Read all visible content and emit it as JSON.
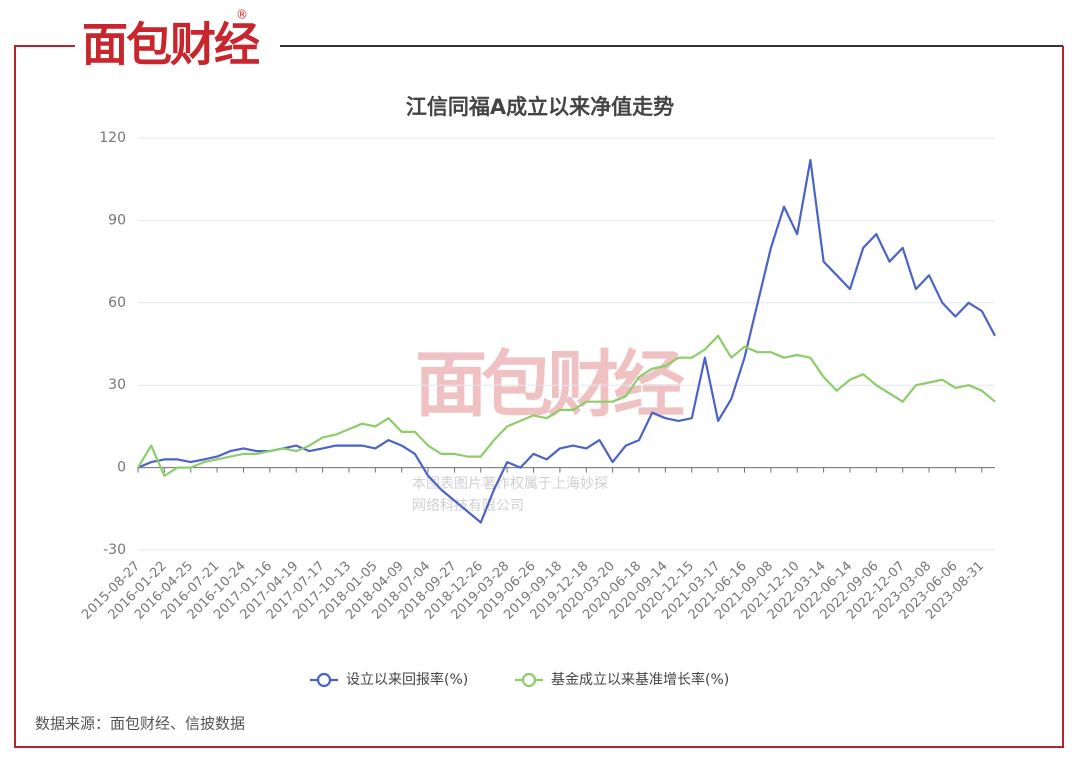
{
  "brand": {
    "name": "面包财经",
    "mark": "®"
  },
  "watermark": {
    "logo": "面包财经",
    "line1": "本图表图片著作权属于上海妙探",
    "line2": "网络科技有限公司"
  },
  "source": "数据来源：面包财经、信披数据",
  "chart_data": {
    "type": "line",
    "title": "江信同福A成立以来净值走势",
    "categories": [
      "2015-08-27",
      null,
      "2016-01-22",
      null,
      "2016-04-25",
      null,
      "2016-07-21",
      null,
      "2016-10-24",
      null,
      "2017-01-16",
      null,
      "2017-04-19",
      null,
      "2017-07-17",
      null,
      "2017-10-13",
      null,
      "2018-01-05",
      null,
      "2018-04-09",
      null,
      "2018-07-04",
      null,
      "2018-09-27",
      null,
      "2018-12-26",
      null,
      "2019-03-28",
      null,
      "2019-06-26",
      null,
      "2019-09-18",
      null,
      "2019-12-18",
      null,
      "2020-03-20",
      null,
      "2020-06-18",
      null,
      "2020-09-14",
      null,
      "2020-12-15",
      null,
      "2021-03-17",
      null,
      "2021-06-16",
      null,
      "2021-09-08",
      null,
      "2021-12-10",
      null,
      "2022-03-14",
      null,
      "2022-06-14",
      null,
      "2022-09-06",
      null,
      "2022-12-07",
      null,
      "2023-03-08",
      null,
      "2023-06-06",
      null,
      "2023-08-31",
      null
    ],
    "series": [
      {
        "name": "设立以来回报率(%)",
        "color": "#4a63c6",
        "values": [
          0,
          2,
          3,
          3,
          2,
          3,
          4,
          6,
          7,
          6,
          6,
          7,
          8,
          6,
          7,
          8,
          8,
          8,
          7,
          10,
          8,
          5,
          -3,
          -8,
          -12,
          -16,
          -20,
          -8,
          2,
          0,
          5,
          3,
          7,
          8,
          7,
          10,
          2,
          8,
          10,
          20,
          18,
          17,
          18,
          40,
          17,
          25,
          40,
          60,
          80,
          95,
          85,
          112,
          75,
          70,
          65,
          80,
          85,
          75,
          80,
          65,
          70,
          60,
          55,
          60,
          57,
          48
        ]
      },
      {
        "name": "基金成立以来基准增长率(%)",
        "color": "#8ccd6a",
        "values": [
          0,
          8,
          -3,
          0,
          0,
          2,
          3,
          4,
          5,
          5,
          6,
          7,
          6,
          8,
          11,
          12,
          14,
          16,
          15,
          18,
          13,
          13,
          8,
          5,
          5,
          4,
          4,
          10,
          15,
          17,
          19,
          18,
          21,
          21,
          24,
          24,
          24,
          26,
          33,
          36,
          37,
          40,
          40,
          43,
          48,
          40,
          44,
          42,
          42,
          40,
          41,
          40,
          33,
          28,
          32,
          34,
          30,
          27,
          24,
          30,
          31,
          32,
          29,
          30,
          28,
          24
        ]
      }
    ],
    "ylim": [
      -30,
      120
    ],
    "yticks": [
      -30,
      0,
      30,
      60,
      90,
      120
    ],
    "grid": true,
    "legend": "bottom"
  }
}
